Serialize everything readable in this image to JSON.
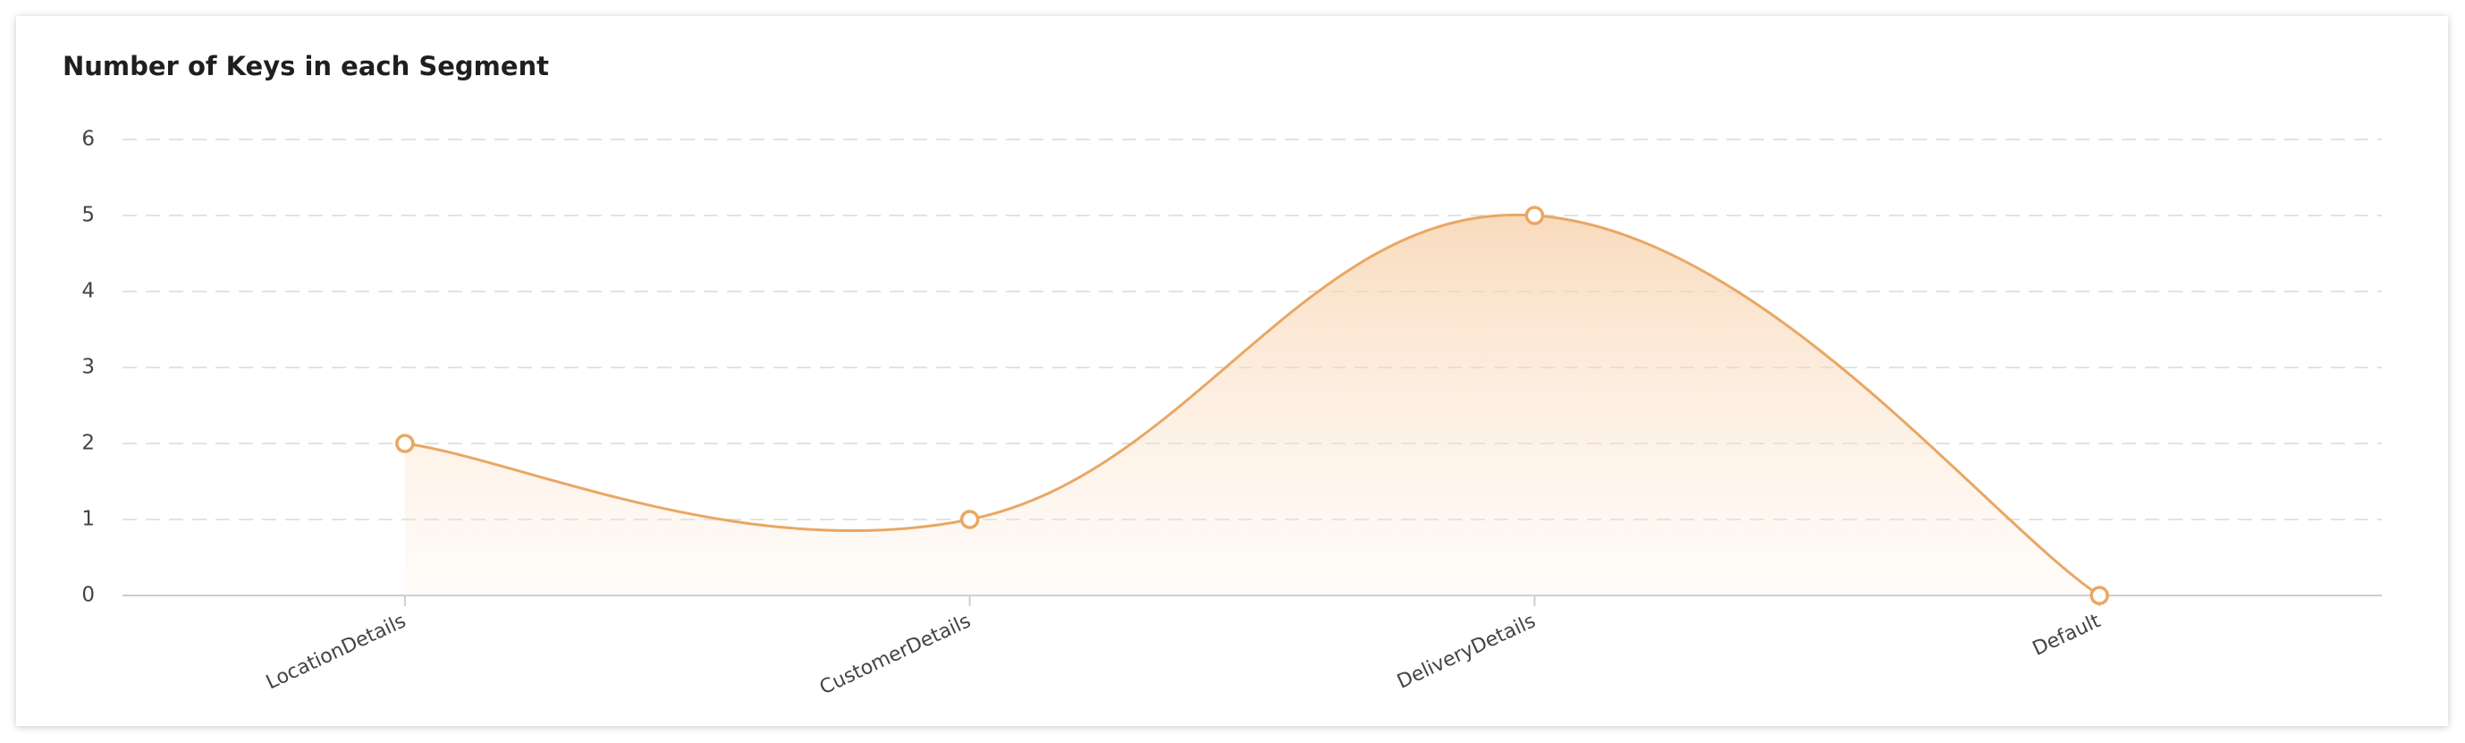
{
  "chart_data": {
    "type": "area",
    "title": "Number of Keys in each Segment",
    "categories": [
      "LocationDetails",
      "CustomerDetails",
      "DeliveryDetails",
      "Default"
    ],
    "series": [
      {
        "name": "Keys",
        "color": "#e9a764",
        "values": [
          2,
          1,
          5,
          0
        ]
      }
    ],
    "ylim": [
      0,
      6
    ],
    "yticks": [
      0,
      1,
      2,
      3,
      4,
      5,
      6
    ],
    "grid": true
  }
}
